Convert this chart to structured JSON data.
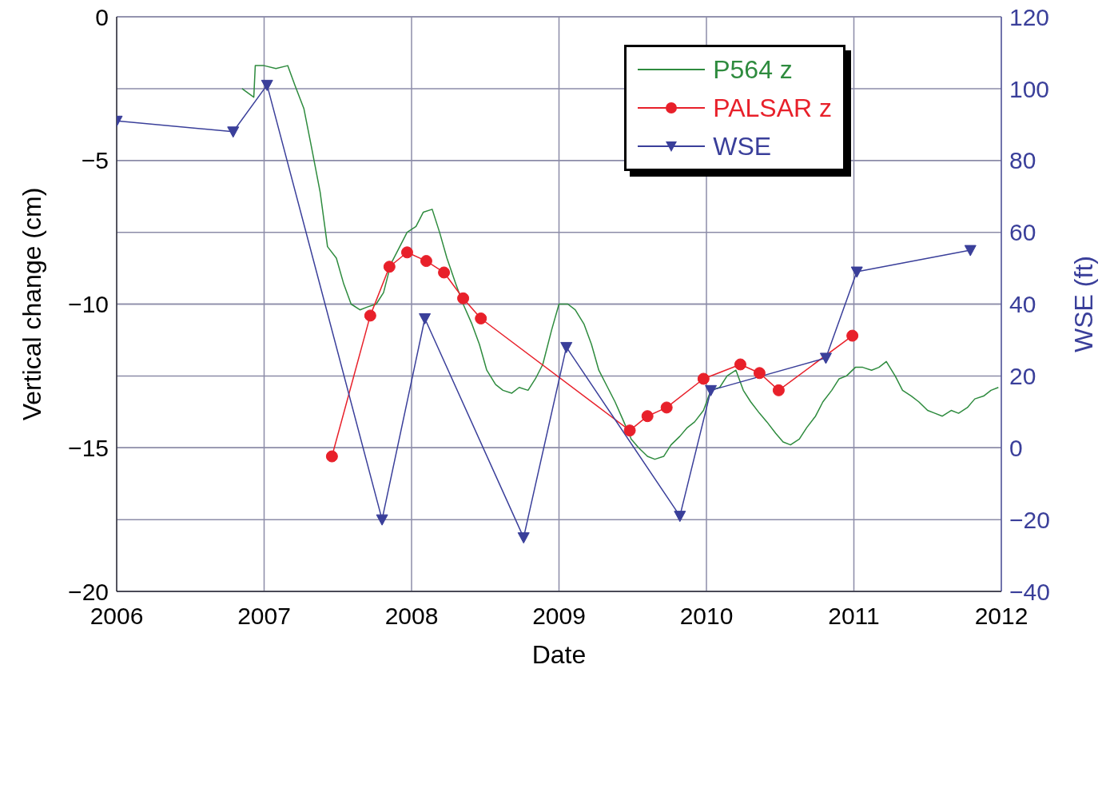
{
  "chart_data": {
    "type": "line",
    "xlabel": "Date",
    "ylabel": "Vertical change (cm)",
    "y2label": "WSE (ft)",
    "xlim": [
      2006,
      2012
    ],
    "xticks": [
      2006,
      2007,
      2008,
      2009,
      2010,
      2011,
      2012
    ],
    "ylim": [
      -20,
      0
    ],
    "yticks": [
      {
        "value": -20,
        "label": "−20"
      },
      {
        "value": -15,
        "label": "−15"
      },
      {
        "value": -10,
        "label": "−10"
      },
      {
        "value": -5,
        "label": "−5"
      },
      0
    ],
    "y2lim": [
      -40,
      120
    ],
    "y2ticks": [
      {
        "value": -40,
        "label": "−40"
      },
      {
        "value": -20,
        "label": "−20"
      },
      0,
      20,
      40,
      60,
      80,
      100,
      120
    ],
    "grid": true,
    "legend": "top right",
    "series": [
      {
        "name": "P564 z",
        "color": "#2e8b3e",
        "marker": "none",
        "x": [
          2006.85,
          2006.93,
          2006.94,
          2007.0,
          2007.08,
          2007.16,
          2007.21,
          2007.27,
          2007.32,
          2007.38,
          2007.43,
          2007.49,
          2007.54,
          2007.59,
          2007.65,
          2007.7,
          2007.76,
          2007.81,
          2007.86,
          2007.92,
          2007.97,
          2008.03,
          2008.08,
          2008.14,
          2008.19,
          2008.24,
          2008.3,
          2008.35,
          2008.41,
          2008.46,
          2008.51,
          2008.57,
          2008.62,
          2008.68,
          2008.73,
          2008.79,
          2008.84,
          2008.89,
          2008.95,
          2009.0,
          2009.06,
          2009.11,
          2009.17,
          2009.22,
          2009.27,
          2009.33,
          2009.38,
          2009.44,
          2009.49,
          2009.54,
          2009.6,
          2009.65,
          2009.71,
          2009.76,
          2009.82,
          2009.87,
          2009.92,
          2009.98,
          2010.03,
          2010.09,
          2010.14,
          2010.2,
          2010.25,
          2010.3,
          2010.36,
          2010.41,
          2010.47,
          2010.52,
          2010.57,
          2010.63,
          2010.68,
          2010.74,
          2010.79,
          2010.85,
          2010.9,
          2010.95,
          2011.01,
          2011.06,
          2011.12,
          2011.17,
          2011.22,
          2011.28,
          2011.33,
          2011.39,
          2011.44,
          2011.5,
          2011.55,
          2011.6,
          2011.66,
          2011.71,
          2011.77,
          2011.82,
          2011.88,
          2011.93,
          2011.98
        ],
        "values": [
          -2.5,
          -2.8,
          -1.7,
          -1.7,
          -1.8,
          -1.7,
          -2.4,
          -3.2,
          -4.5,
          -6.1,
          -8.0,
          -8.4,
          -9.3,
          -10.0,
          -10.2,
          -10.1,
          -10.0,
          -9.6,
          -8.6,
          -8.0,
          -7.5,
          -7.3,
          -6.8,
          -6.7,
          -7.5,
          -8.4,
          -9.3,
          -10.0,
          -10.7,
          -11.4,
          -12.3,
          -12.8,
          -13.0,
          -13.1,
          -12.9,
          -13.0,
          -12.6,
          -12.1,
          -10.9,
          -10.0,
          -10.0,
          -10.2,
          -10.7,
          -11.4,
          -12.3,
          -12.9,
          -13.4,
          -14.1,
          -14.7,
          -15.0,
          -15.3,
          -15.4,
          -15.3,
          -14.9,
          -14.6,
          -14.3,
          -14.1,
          -13.7,
          -13.0,
          -12.9,
          -12.5,
          -12.3,
          -13.0,
          -13.4,
          -13.8,
          -14.1,
          -14.5,
          -14.8,
          -14.9,
          -14.7,
          -14.3,
          -13.9,
          -13.4,
          -13.0,
          -12.6,
          -12.5,
          -12.2,
          -12.2,
          -12.3,
          -12.2,
          -12.0,
          -12.5,
          -13.0,
          -13.2,
          -13.4,
          -13.7,
          -13.8,
          -13.9,
          -13.7,
          -13.8,
          -13.6,
          -13.3,
          -13.2,
          -13.0,
          -12.9
        ]
      },
      {
        "name": "PALSAR z",
        "color": "#e8202a",
        "marker": "circle",
        "x": [
          2007.46,
          2007.72,
          2007.85,
          2007.97,
          2008.1,
          2008.22,
          2008.35,
          2008.47,
          2009.48,
          2009.6,
          2009.73,
          2009.98,
          2010.23,
          2010.36,
          2010.49,
          2010.99
        ],
        "values": [
          -15.3,
          -10.4,
          -8.7,
          -8.2,
          -8.5,
          -8.9,
          -9.8,
          -10.5,
          -14.4,
          -13.9,
          -13.6,
          -12.6,
          -12.1,
          -12.4,
          -13.0,
          -11.1
        ]
      },
      {
        "name": "WSE",
        "color": "#3a3f9a",
        "marker": "triangle",
        "axis": "y2",
        "x": [
          2006.0,
          2006.79,
          2007.02,
          2007.8,
          2008.09,
          2008.76,
          2009.05,
          2009.82,
          2010.03,
          2010.81,
          2011.02,
          2011.79
        ],
        "values": [
          91,
          88,
          101,
          -20,
          36,
          -25,
          28,
          -19,
          16,
          25,
          49,
          55
        ]
      }
    ]
  }
}
